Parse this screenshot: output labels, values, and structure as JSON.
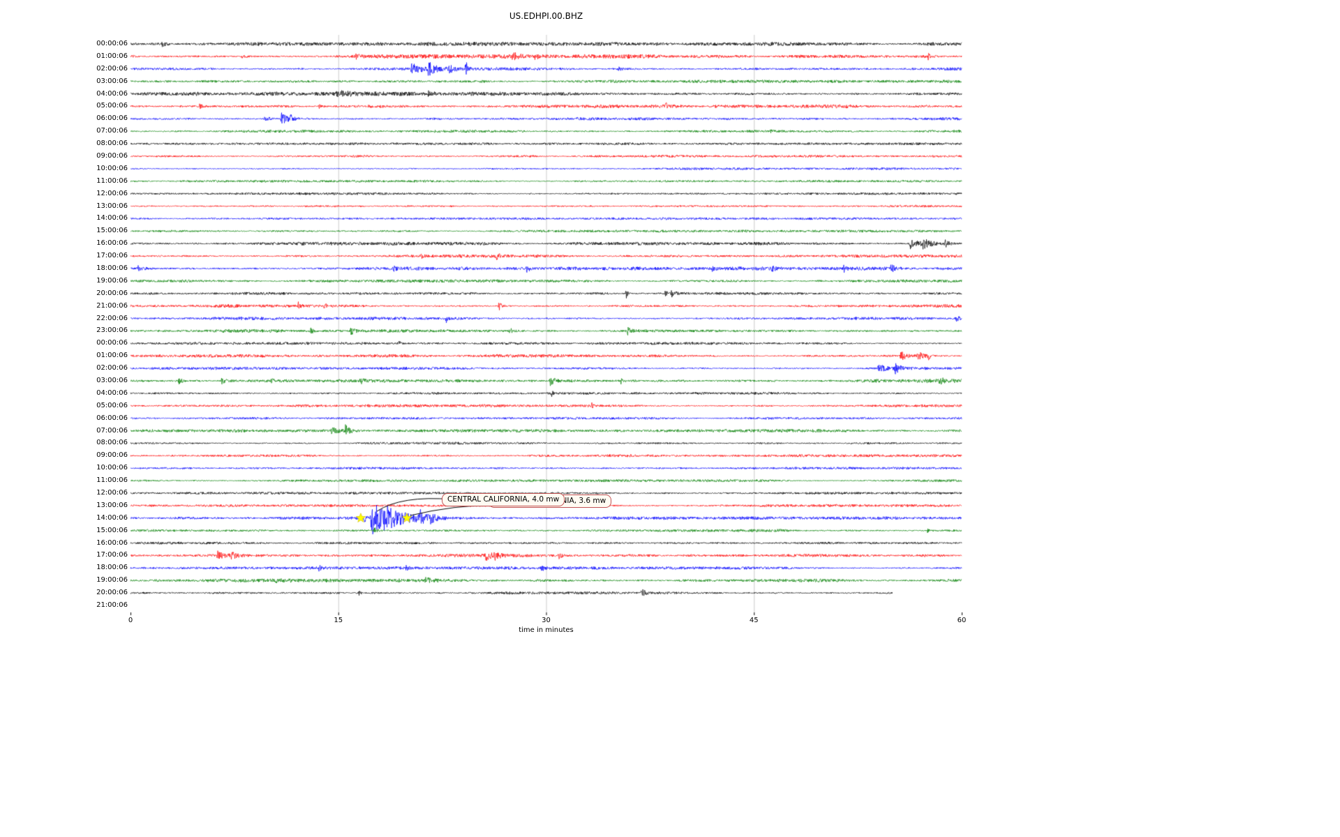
{
  "title": "US.EDHPI.00.BHZ",
  "axes": {
    "xlabel": "time in minutes",
    "xtick_labels": [
      "0",
      "15",
      "30",
      "45",
      "60"
    ],
    "xtick_minutes": [
      0,
      15,
      30,
      45,
      60
    ],
    "x_range_minutes": [
      0,
      60
    ]
  },
  "chart_data": {
    "type": "line",
    "subtype": "seismogram-dayplot",
    "station": "US.EDHPI.00.BHZ",
    "title": "US.EDHPI.00.BHZ",
    "xlabel": "time in minutes",
    "x_range_minutes": [
      0,
      60
    ],
    "grid_minutes": [
      15,
      30,
      45
    ],
    "grid_color": "#cccccc",
    "trace_color_cycle": [
      "#000000",
      "#ff0000",
      "#0000ff",
      "#008000"
    ],
    "rows": [
      {
        "label": "00:00:06",
        "noise_amp": 1.6
      },
      {
        "label": "01:00:06",
        "noise_amp": 1.7
      },
      {
        "label": "02:00:06",
        "noise_amp": 1.3
      },
      {
        "label": "03:00:06",
        "noise_amp": 1.2
      },
      {
        "label": "04:00:06",
        "noise_amp": 1.6
      },
      {
        "label": "05:00:06",
        "noise_amp": 1.7
      },
      {
        "label": "06:00:06",
        "noise_amp": 1.3
      },
      {
        "label": "07:00:06",
        "noise_amp": 1.2
      },
      {
        "label": "08:00:06",
        "noise_amp": 1.0
      },
      {
        "label": "09:00:06",
        "noise_amp": 1.1
      },
      {
        "label": "10:00:06",
        "noise_amp": 1.0
      },
      {
        "label": "11:00:06",
        "noise_amp": 1.0
      },
      {
        "label": "12:00:06",
        "noise_amp": 1.0
      },
      {
        "label": "13:00:06",
        "noise_amp": 1.1
      },
      {
        "label": "14:00:06",
        "noise_amp": 1.0
      },
      {
        "label": "15:00:06",
        "noise_amp": 1.0
      },
      {
        "label": "16:00:06",
        "noise_amp": 1.4
      },
      {
        "label": "17:00:06",
        "noise_amp": 1.3
      },
      {
        "label": "18:00:06",
        "noise_amp": 1.5
      },
      {
        "label": "19:00:06",
        "noise_amp": 1.3
      },
      {
        "label": "20:00:06",
        "noise_amp": 1.2
      },
      {
        "label": "21:00:06",
        "noise_amp": 1.4
      },
      {
        "label": "22:00:06",
        "noise_amp": 1.3
      },
      {
        "label": "23:00:06",
        "noise_amp": 1.4
      },
      {
        "label": "00:00:06",
        "noise_amp": 1.1
      },
      {
        "label": "01:00:06",
        "noise_amp": 1.3
      },
      {
        "label": "02:00:06",
        "noise_amp": 1.2
      },
      {
        "label": "03:00:06",
        "noise_amp": 1.6
      },
      {
        "label": "04:00:06",
        "noise_amp": 1.1
      },
      {
        "label": "05:00:06",
        "noise_amp": 1.2
      },
      {
        "label": "06:00:06",
        "noise_amp": 1.0
      },
      {
        "label": "07:00:06",
        "noise_amp": 1.3
      },
      {
        "label": "08:00:06",
        "noise_amp": 1.0
      },
      {
        "label": "09:00:06",
        "noise_amp": 1.1
      },
      {
        "label": "10:00:06",
        "noise_amp": 1.0
      },
      {
        "label": "11:00:06",
        "noise_amp": 1.0
      },
      {
        "label": "12:00:06",
        "noise_amp": 1.0
      },
      {
        "label": "13:00:06",
        "noise_amp": 1.1
      },
      {
        "label": "14:00:06",
        "noise_amp": 1.3
      },
      {
        "label": "15:00:06",
        "noise_amp": 1.2
      },
      {
        "label": "16:00:06",
        "noise_amp": 1.3
      },
      {
        "label": "17:00:06",
        "noise_amp": 1.4
      },
      {
        "label": "18:00:06",
        "noise_amp": 1.2
      },
      {
        "label": "19:00:06",
        "noise_amp": 1.5
      },
      {
        "label": "20:00:06",
        "noise_amp": 1.2,
        "end_min": 55
      },
      {
        "label": "21:00:06",
        "noise_amp": 0,
        "end_min": 0
      }
    ],
    "event_format": [
      "row",
      "t0_min",
      "amp_px",
      "decay_min"
    ],
    "events": [
      [
        0,
        2.3,
        4,
        0.25
      ],
      [
        1,
        8.0,
        3,
        0.2
      ],
      [
        1,
        16.3,
        4,
        0.15
      ],
      [
        1,
        21.3,
        3,
        0.15
      ],
      [
        1,
        27.6,
        5,
        0.5
      ],
      [
        1,
        29.2,
        4,
        0.3
      ],
      [
        1,
        57.6,
        6,
        0.06
      ],
      [
        2,
        20.3,
        7,
        0.8
      ],
      [
        2,
        21.5,
        9,
        0.4
      ],
      [
        2,
        23.0,
        5,
        0.3
      ],
      [
        2,
        24.2,
        13,
        0.1
      ],
      [
        2,
        35.2,
        3,
        0.2
      ],
      [
        4,
        15.2,
        2.5,
        3.5
      ],
      [
        4,
        14.9,
        4,
        0.15
      ],
      [
        4,
        21.5,
        3,
        0.4
      ],
      [
        5,
        5.0,
        3,
        0.2
      ],
      [
        5,
        13.6,
        3,
        0.15
      ],
      [
        5,
        17.2,
        3,
        0.2
      ],
      [
        5,
        38.6,
        4,
        0.3
      ],
      [
        6,
        9.7,
        4,
        0.5
      ],
      [
        6,
        10.9,
        8,
        0.5
      ],
      [
        6,
        11.4,
        6,
        0.3
      ],
      [
        7,
        46.2,
        3,
        0.1
      ],
      [
        16,
        56.3,
        9,
        0.5
      ],
      [
        16,
        57.2,
        7,
        0.6
      ],
      [
        16,
        58.8,
        5,
        0.3
      ],
      [
        17,
        21.0,
        3,
        0.15
      ],
      [
        17,
        26.4,
        4,
        0.25
      ],
      [
        18,
        0.5,
        4,
        0.3
      ],
      [
        18,
        19.0,
        3,
        0.2
      ],
      [
        18,
        28.6,
        4,
        0.25
      ],
      [
        18,
        42.0,
        4,
        0.2
      ],
      [
        18,
        46.3,
        3,
        0.2
      ],
      [
        18,
        51.5,
        4,
        0.2
      ],
      [
        18,
        54.9,
        5,
        0.25
      ],
      [
        20,
        35.8,
        9,
        0.08
      ],
      [
        20,
        38.6,
        4,
        0.2
      ],
      [
        20,
        39.0,
        5,
        0.4
      ],
      [
        21,
        12.1,
        5,
        0.2
      ],
      [
        21,
        14.0,
        4,
        0.15
      ],
      [
        21,
        26.6,
        6,
        0.2
      ],
      [
        22,
        22.8,
        5,
        0.1
      ],
      [
        22,
        59.6,
        4,
        0.3
      ],
      [
        23,
        13.0,
        4,
        0.25
      ],
      [
        23,
        15.9,
        5,
        0.3
      ],
      [
        23,
        27.4,
        4,
        0.2
      ],
      [
        23,
        35.9,
        5,
        0.25
      ],
      [
        24,
        19.4,
        4,
        0.1
      ],
      [
        25,
        55.6,
        6,
        0.5
      ],
      [
        25,
        56.8,
        7,
        0.4
      ],
      [
        25,
        57.6,
        8,
        0.1
      ],
      [
        26,
        54.0,
        7,
        0.4
      ],
      [
        26,
        55.2,
        8,
        0.3
      ],
      [
        27,
        3.5,
        5,
        0.3
      ],
      [
        27,
        6.6,
        5,
        0.35
      ],
      [
        27,
        10.2,
        3,
        0.2
      ],
      [
        27,
        16.6,
        4,
        0.2
      ],
      [
        27,
        30.3,
        6,
        0.3
      ],
      [
        27,
        35.4,
        4,
        0.2
      ],
      [
        27,
        58.4,
        4,
        0.3
      ],
      [
        28,
        30.4,
        5,
        0.08
      ],
      [
        29,
        33.3,
        5,
        0.08
      ],
      [
        31,
        14.5,
        5,
        0.4
      ],
      [
        31,
        15.5,
        8,
        0.25
      ],
      [
        38,
        16.9,
        5,
        0.1
      ],
      [
        38,
        17.35,
        27,
        0.9
      ],
      [
        38,
        18.3,
        10,
        2.2
      ],
      [
        38,
        20.9,
        8,
        0.35
      ],
      [
        38,
        21.6,
        5,
        0.3
      ],
      [
        39,
        17.6,
        5,
        0.15
      ],
      [
        39,
        57.5,
        4,
        0.12
      ],
      [
        41,
        6.3,
        6,
        0.5
      ],
      [
        41,
        7.3,
        5,
        0.4
      ],
      [
        41,
        25.6,
        7,
        0.4
      ],
      [
        41,
        26.3,
        5,
        0.3
      ],
      [
        41,
        30.9,
        4,
        0.2
      ],
      [
        42,
        13.6,
        4,
        0.15
      ],
      [
        42,
        19.9,
        3,
        0.2
      ],
      [
        42,
        29.7,
        4,
        0.15
      ],
      [
        43,
        10.5,
        4,
        0.3
      ],
      [
        43,
        21.3,
        5,
        0.25
      ],
      [
        44,
        16.5,
        4,
        0.1
      ],
      [
        44,
        36.9,
        5,
        0.3
      ]
    ],
    "markers": [
      {
        "type": "star",
        "row": 38,
        "t_min": 16.62,
        "color": "#ffff00"
      },
      {
        "type": "star",
        "row": 38,
        "t_min": 19.95,
        "color": "#ffff00"
      }
    ],
    "annotations": [
      {
        "text": "CENTRAL CALIFORNIA, 4.0 mw"
      },
      {
        "text": "CENTRAL CALIFORNIA, 3.6 mw"
      }
    ]
  }
}
